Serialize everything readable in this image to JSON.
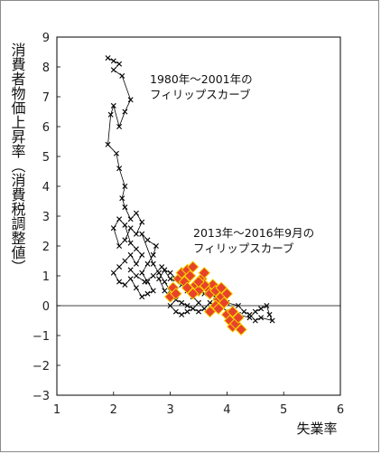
{
  "chart_data": {
    "type": "scatter",
    "xlabel": "失業率",
    "ylabel": "消費者物価上昇率（消費税調整値）",
    "xlim": [
      1,
      6
    ],
    "ylim": [
      -3,
      9
    ],
    "xticks": [
      "1",
      "2",
      "3",
      "4",
      "5",
      "6"
    ],
    "yticks": [
      "9",
      "8",
      "7",
      "6",
      "5",
      "4",
      "3",
      "2",
      "1",
      "0",
      "−1",
      "−2",
      "−3"
    ],
    "grid": false,
    "zero_line": true,
    "annotations": [
      {
        "text": "1980年～2001年の"
      },
      {
        "text": "フィリップスカーブ"
      },
      {
        "text": "2013年～2016年9月の"
      },
      {
        "text": "フィリップスカーブ"
      }
    ],
    "series": [
      {
        "marker": "x",
        "color": "#000000",
        "connected": true,
        "points": [
          [
            1.9,
            8.3
          ],
          [
            2.0,
            8.2
          ],
          [
            2.1,
            8.1
          ],
          [
            2.0,
            7.9
          ],
          [
            2.15,
            7.7
          ],
          [
            2.3,
            6.9
          ],
          [
            2.2,
            6.5
          ],
          [
            2.1,
            6.0
          ],
          [
            2.0,
            6.7
          ],
          [
            1.95,
            6.4
          ],
          [
            1.9,
            5.4
          ],
          [
            2.05,
            5.1
          ],
          [
            2.1,
            4.6
          ],
          [
            2.2,
            4.0
          ],
          [
            2.15,
            3.6
          ],
          [
            2.2,
            3.3
          ],
          [
            2.3,
            2.9
          ],
          [
            2.4,
            3.1
          ],
          [
            2.5,
            2.8
          ],
          [
            2.4,
            2.4
          ],
          [
            2.3,
            2.6
          ],
          [
            2.2,
            2.2
          ],
          [
            2.1,
            2.0
          ],
          [
            2.0,
            2.6
          ],
          [
            2.1,
            2.9
          ],
          [
            2.2,
            2.7
          ],
          [
            2.3,
            2.1
          ],
          [
            2.4,
            1.9
          ],
          [
            2.5,
            1.7
          ],
          [
            2.4,
            1.4
          ],
          [
            2.3,
            1.7
          ],
          [
            2.2,
            1.5
          ],
          [
            2.1,
            1.3
          ],
          [
            2.0,
            1.1
          ],
          [
            2.1,
            0.8
          ],
          [
            2.2,
            0.7
          ],
          [
            2.3,
            0.9
          ],
          [
            2.4,
            0.6
          ],
          [
            2.5,
            0.3
          ],
          [
            2.6,
            0.4
          ],
          [
            2.7,
            0.5
          ],
          [
            2.6,
            0.8
          ],
          [
            2.5,
            1.1
          ],
          [
            2.6,
            1.4
          ],
          [
            2.7,
            1.7
          ],
          [
            2.75,
            2.0
          ],
          [
            2.6,
            2.2
          ],
          [
            2.5,
            2.4
          ],
          [
            2.7,
            1.4
          ],
          [
            2.8,
            1.1
          ],
          [
            2.9,
            0.8
          ],
          [
            3.0,
            0.5
          ],
          [
            3.1,
            0.2
          ],
          [
            3.0,
            0.0
          ],
          [
            3.1,
            -0.2
          ],
          [
            3.2,
            -0.3
          ],
          [
            3.3,
            -0.2
          ],
          [
            3.4,
            -0.1
          ],
          [
            3.5,
            0.1
          ],
          [
            3.4,
            0.3
          ],
          [
            3.3,
            0.5
          ],
          [
            3.2,
            0.7
          ],
          [
            3.1,
            0.9
          ],
          [
            3.0,
            1.1
          ],
          [
            2.9,
            1.2
          ],
          [
            2.8,
            0.9
          ],
          [
            2.9,
            0.5
          ],
          [
            3.0,
            0.3
          ],
          [
            3.2,
            0.1
          ],
          [
            3.3,
            0.0
          ],
          [
            3.5,
            -0.2
          ],
          [
            3.6,
            -0.1
          ],
          [
            3.7,
            0.1
          ],
          [
            3.9,
            0.0
          ],
          [
            4.0,
            -0.2
          ],
          [
            4.2,
            -0.3
          ],
          [
            4.4,
            -0.4
          ],
          [
            4.5,
            -0.2
          ],
          [
            4.6,
            -0.1
          ],
          [
            4.7,
            0.0
          ],
          [
            4.75,
            -0.3
          ],
          [
            4.8,
            -0.5
          ],
          [
            4.6,
            -0.4
          ],
          [
            4.5,
            -0.5
          ],
          [
            4.4,
            -0.3
          ],
          [
            4.3,
            -0.2
          ],
          [
            4.2,
            0.0
          ],
          [
            4.0,
            0.1
          ],
          [
            3.8,
            0.3
          ],
          [
            3.6,
            0.4
          ],
          [
            3.4,
            0.6
          ],
          [
            3.2,
            0.8
          ],
          [
            3.0,
            0.9
          ],
          [
            2.85,
            1.3
          ],
          [
            2.7,
            1.0
          ],
          [
            2.55,
            0.8
          ],
          [
            2.4,
            1.0
          ],
          [
            2.3,
            1.2
          ]
        ]
      },
      {
        "marker": "diamond",
        "color": "#e8432a",
        "edge": "#f5d400",
        "connected": false,
        "points": [
          [
            3.0,
            0.3
          ],
          [
            3.05,
            0.6
          ],
          [
            3.1,
            0.4
          ],
          [
            3.15,
            0.9
          ],
          [
            3.2,
            1.1
          ],
          [
            3.25,
            0.8
          ],
          [
            3.3,
            1.2
          ],
          [
            3.35,
            1.0
          ],
          [
            3.4,
            1.3
          ],
          [
            3.45,
            0.7
          ],
          [
            3.5,
            0.5
          ],
          [
            3.4,
            0.4
          ],
          [
            3.3,
            0.6
          ],
          [
            3.55,
            0.9
          ],
          [
            3.6,
            1.1
          ],
          [
            3.65,
            0.6
          ],
          [
            3.7,
            0.4
          ],
          [
            3.75,
            0.7
          ],
          [
            3.8,
            0.5
          ],
          [
            3.85,
            0.2
          ],
          [
            3.9,
            0.3
          ],
          [
            3.8,
            0.0
          ],
          [
            3.7,
            -0.2
          ],
          [
            3.85,
            -0.1
          ],
          [
            3.95,
            0.1
          ],
          [
            4.0,
            -0.3
          ],
          [
            4.05,
            -0.5
          ],
          [
            4.1,
            -0.7
          ],
          [
            4.15,
            -0.6
          ],
          [
            4.2,
            -0.4
          ],
          [
            4.25,
            -0.8
          ],
          [
            4.1,
            -0.2
          ],
          [
            4.0,
            0.4
          ],
          [
            3.9,
            0.6
          ],
          [
            3.6,
            0.7
          ],
          [
            3.5,
            0.8
          ]
        ]
      }
    ]
  }
}
